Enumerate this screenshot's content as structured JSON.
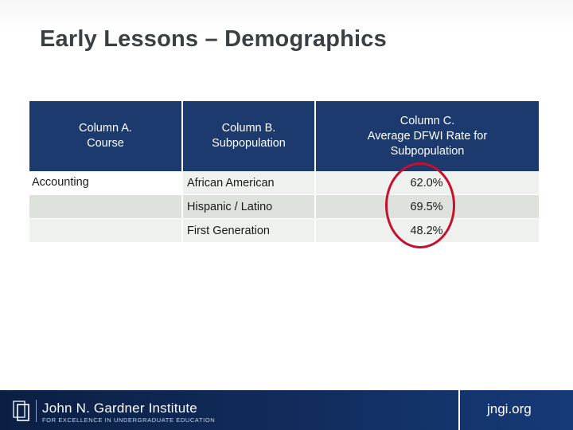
{
  "title": "Early Lessons – Demographics",
  "table": {
    "headers": [
      {
        "line1": "Column A.",
        "line2": "Course",
        "line3": ""
      },
      {
        "line1": "Column B.",
        "line2": "Subpopulation",
        "line3": ""
      },
      {
        "line1": "Column C.",
        "line2": "Average DFWI Rate for",
        "line3": "Subpopulation"
      }
    ],
    "rows": [
      {
        "course": "Accounting",
        "subpopulation": "African American",
        "rate": "62.0%"
      },
      {
        "course": "",
        "subpopulation": "Hispanic / Latino",
        "rate": "69.5%"
      },
      {
        "course": "",
        "subpopulation": "First Generation",
        "rate": "48.2%"
      }
    ]
  },
  "highlight": {
    "color": "#c8102e"
  },
  "footer": {
    "org_name": "John N. Gardner Institute",
    "tagline": "FOR EXCELLENCE IN UNDERGRADUATE EDUCATION",
    "url": "jngi.org"
  }
}
